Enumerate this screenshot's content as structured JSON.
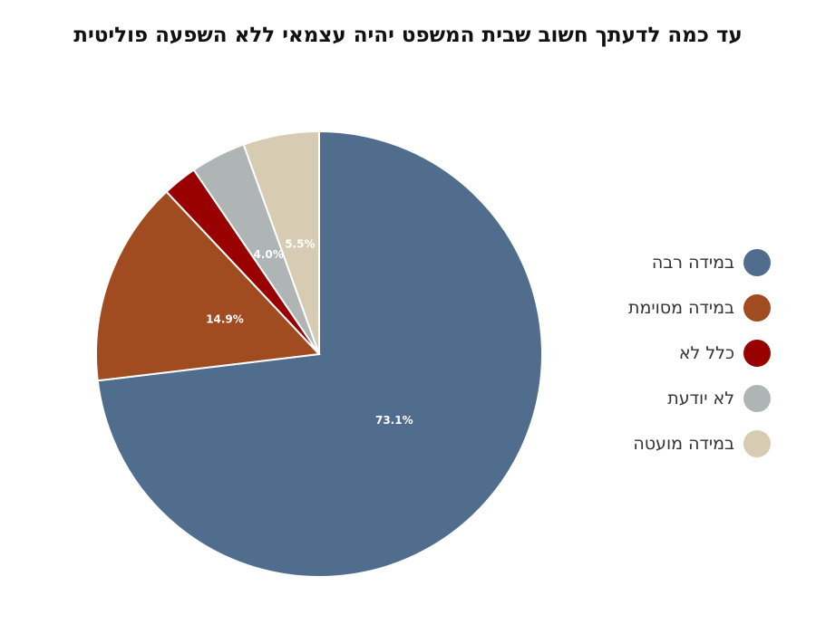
{
  "chart_data": {
    "type": "pie",
    "title": "עד כמה לדעתך חשוב שבית המשפט יהיה עצמאי ללא השפעה פוליטית",
    "slices": [
      {
        "label": "במידה רבה",
        "value": 73.1,
        "value_label": "73.1%",
        "color": "#506d8e"
      },
      {
        "label": "במידה מסוימת",
        "value": 14.9,
        "value_label": "14.9%",
        "color": "#a04c20"
      },
      {
        "label": "כלל לא",
        "value": 2.5,
        "value_label": "",
        "color": "#990000"
      },
      {
        "label": "לא יודעת",
        "value": 4.0,
        "value_label": "4.0%",
        "color": "#afb4b4"
      },
      {
        "label": "במידה מועטה",
        "value": 5.5,
        "value_label": "5.5%",
        "color": "#d7cbb4"
      }
    ],
    "start_angle_deg": 0,
    "direction": "clockwise",
    "legend_position": "right"
  }
}
